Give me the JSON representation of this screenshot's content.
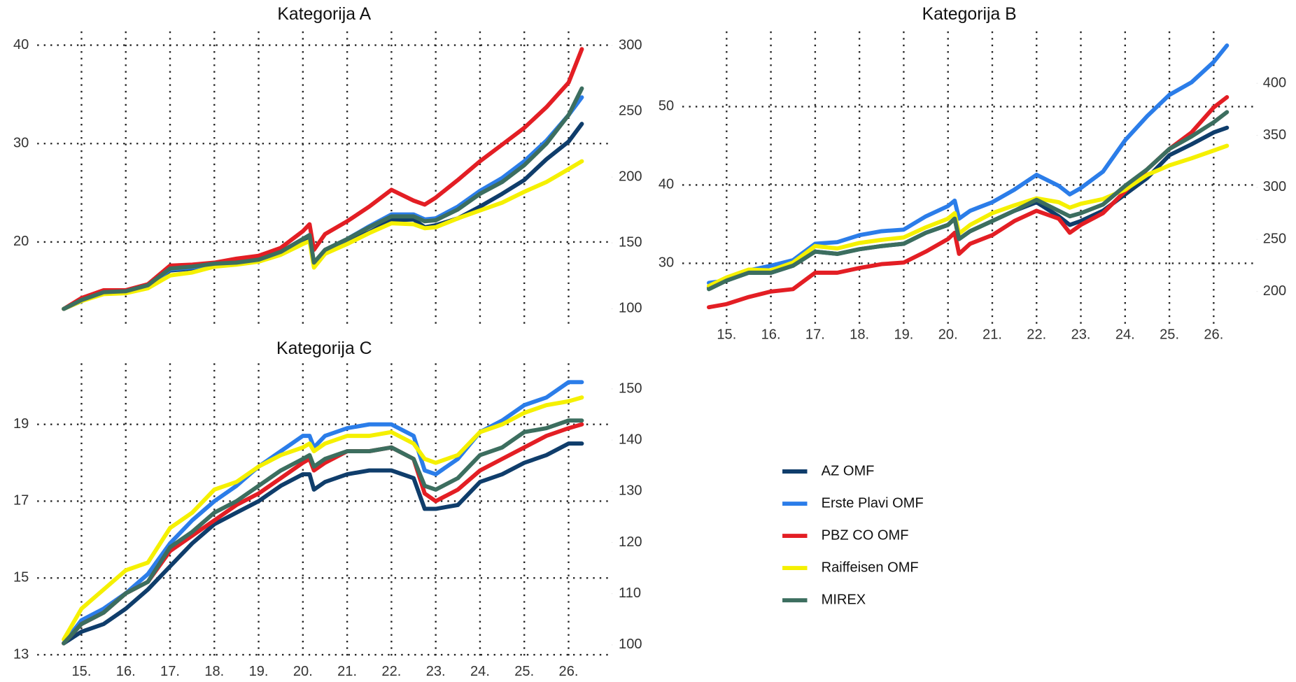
{
  "chart_data": [
    {
      "type": "line",
      "title": "Kategorija A",
      "x": [
        14.6,
        15,
        15.5,
        16,
        16.5,
        17,
        17.5,
        18,
        18.5,
        19,
        19.5,
        20,
        20.15,
        20.25,
        20.5,
        21,
        21.5,
        22,
        22.5,
        22.75,
        23,
        23.5,
        24,
        24.5,
        25,
        25.5,
        26,
        26.3
      ],
      "xlim": [
        14,
        27
      ],
      "xticks": [
        15,
        16,
        17,
        18,
        19,
        20,
        21,
        22,
        23,
        24,
        25,
        26
      ],
      "ylim": [
        11.7,
        41.4
      ],
      "yticks": [
        20,
        30,
        40
      ],
      "y2lim": [
        88.7,
        310.7
      ],
      "y2ticks": [
        100,
        150,
        200,
        250,
        300
      ],
      "series": [
        {
          "name": "AZ OMF",
          "color": "#0f3d6b",
          "values": [
            13.2,
            14.0,
            14.8,
            14.9,
            15.5,
            17.1,
            17.3,
            17.7,
            17.8,
            18.1,
            18.8,
            20.0,
            20.4,
            17.6,
            19.0,
            20.0,
            21.0,
            22.2,
            22.3,
            21.5,
            21.7,
            22.4,
            23.6,
            24.9,
            26.3,
            28.4,
            30.2,
            32.0
          ]
        },
        {
          "name": "Erste Plavi OMF",
          "color": "#2b7de9",
          "values": [
            13.2,
            14.1,
            14.9,
            14.9,
            15.5,
            17.2,
            17.4,
            17.8,
            17.9,
            18.2,
            19.0,
            20.3,
            20.7,
            17.8,
            19.2,
            20.3,
            21.6,
            22.8,
            22.8,
            22.3,
            22.4,
            23.6,
            25.2,
            26.5,
            28.2,
            30.3,
            32.9,
            34.7
          ]
        },
        {
          "name": "PBZ CO OMF",
          "color": "#e31e24",
          "values": [
            13.2,
            14.3,
            15.1,
            15.1,
            15.7,
            17.6,
            17.7,
            17.9,
            18.3,
            18.6,
            19.4,
            21.1,
            21.8,
            19.2,
            20.8,
            22.1,
            23.6,
            25.3,
            24.2,
            23.8,
            24.5,
            26.3,
            28.2,
            29.9,
            31.6,
            33.7,
            36.2,
            39.6
          ]
        },
        {
          "name": "Raiffeisen OMF",
          "color": "#f5f000",
          "values": [
            13.2,
            14.0,
            14.7,
            14.8,
            15.3,
            16.6,
            16.9,
            17.5,
            17.7,
            18.0,
            18.7,
            19.8,
            20.1,
            17.4,
            18.8,
            19.8,
            20.9,
            21.9,
            21.8,
            21.4,
            21.5,
            22.4,
            23.2,
            24.0,
            25.1,
            26.1,
            27.4,
            28.2
          ]
        },
        {
          "name": "MIREX",
          "color": "#3c6e5f",
          "values": [
            13.2,
            14.1,
            14.9,
            15.0,
            15.6,
            17.3,
            17.5,
            17.8,
            17.9,
            18.2,
            19.0,
            20.3,
            20.7,
            17.9,
            19.2,
            20.3,
            21.5,
            22.6,
            22.6,
            22.1,
            22.2,
            23.3,
            24.9,
            26.1,
            27.8,
            30.0,
            32.9,
            35.6
          ]
        }
      ]
    },
    {
      "type": "line",
      "title": "Kategorija B",
      "x": [
        14.6,
        15,
        15.5,
        16,
        16.5,
        17,
        17.5,
        18,
        18.5,
        19,
        19.5,
        20,
        20.15,
        20.25,
        20.5,
        21,
        21.5,
        22,
        22.5,
        22.75,
        23,
        23.5,
        24,
        24.5,
        25,
        25.5,
        26,
        26.3
      ],
      "xlim": [
        14,
        27
      ],
      "xticks": [
        {
          "value": 15,
          "label": "15."
        },
        {
          "value": 16,
          "label": "16."
        },
        {
          "value": 17,
          "label": "17."
        },
        {
          "value": 18,
          "label": "18."
        },
        {
          "value": 19,
          "label": "19."
        },
        {
          "value": 20,
          "label": "20."
        },
        {
          "value": 21,
          "label": "21."
        },
        {
          "value": 22,
          "label": "22."
        },
        {
          "value": 23,
          "label": "23."
        },
        {
          "value": 24,
          "label": "24."
        },
        {
          "value": 25,
          "label": "25."
        },
        {
          "value": 26,
          "label": "26."
        }
      ],
      "ylim": [
        22.3,
        59.6
      ],
      "yticks": [
        30,
        40,
        50
      ],
      "y2lim": [
        169,
        450
      ],
      "y2ticks": [
        200,
        250,
        300,
        350,
        400
      ],
      "series": [
        {
          "name": "AZ OMF",
          "color": "#0f3d6b",
          "values": [
            26.9,
            27.8,
            28.8,
            28.8,
            29.7,
            31.5,
            31.2,
            31.8,
            32.2,
            32.5,
            33.9,
            34.9,
            35.7,
            33.1,
            34.1,
            35.4,
            36.7,
            37.8,
            36.0,
            34.9,
            35.4,
            36.7,
            38.8,
            40.9,
            43.8,
            45.2,
            46.7,
            47.3
          ]
        },
        {
          "name": "Erste Plavi OMF",
          "color": "#2b7de9",
          "values": [
            27.5,
            27.8,
            29.1,
            29.7,
            30.4,
            32.5,
            32.7,
            33.6,
            34.1,
            34.3,
            36.0,
            37.3,
            38.0,
            35.7,
            36.7,
            37.8,
            39.4,
            41.3,
            39.9,
            38.8,
            39.6,
            41.7,
            45.7,
            48.8,
            51.5,
            53.1,
            55.7,
            57.8
          ]
        },
        {
          "name": "PBZ CO OMF",
          "color": "#e31e24",
          "values": [
            24.4,
            24.8,
            25.7,
            26.4,
            26.7,
            28.8,
            28.8,
            29.4,
            29.9,
            30.1,
            31.5,
            33.1,
            33.9,
            31.2,
            32.5,
            33.6,
            35.4,
            36.7,
            35.7,
            33.9,
            34.9,
            36.4,
            39.2,
            42.0,
            44.6,
            46.7,
            49.9,
            51.2
          ]
        },
        {
          "name": "Raiffeisen OMF",
          "color": "#f5f000",
          "values": [
            27.1,
            28.2,
            29.2,
            29.1,
            30.1,
            32.2,
            31.9,
            32.6,
            33.0,
            33.3,
            34.6,
            35.7,
            36.4,
            33.8,
            34.9,
            36.4,
            37.4,
            38.3,
            37.8,
            37.1,
            37.6,
            38.2,
            39.4,
            41.3,
            42.5,
            43.4,
            44.4,
            45.0
          ]
        },
        {
          "name": "MIREX",
          "color": "#3c6e5f",
          "values": [
            26.7,
            27.8,
            28.8,
            28.8,
            29.7,
            31.5,
            31.2,
            31.8,
            32.2,
            32.5,
            33.9,
            34.9,
            35.7,
            33.1,
            34.1,
            35.4,
            36.7,
            38.1,
            36.7,
            36.0,
            36.4,
            37.5,
            39.9,
            42.0,
            44.6,
            46.2,
            48.0,
            49.3
          ]
        }
      ]
    },
    {
      "type": "line",
      "title": "Kategorija C",
      "x": [
        14.6,
        15,
        15.5,
        16,
        16.5,
        17,
        17.5,
        18,
        18.5,
        19,
        19.5,
        20,
        20.15,
        20.25,
        20.5,
        21,
        21.5,
        22,
        22.5,
        22.75,
        23,
        23.5,
        24,
        24.5,
        25,
        25.5,
        26,
        26.3
      ],
      "xlim": [
        14,
        27
      ],
      "xticks": [
        {
          "value": 15,
          "label": "15."
        },
        {
          "value": 16,
          "label": "16."
        },
        {
          "value": 17,
          "label": "17."
        },
        {
          "value": 18,
          "label": "18."
        },
        {
          "value": 19,
          "label": "19."
        },
        {
          "value": 20,
          "label": "20."
        },
        {
          "value": 21,
          "label": "21."
        },
        {
          "value": 22,
          "label": "22."
        },
        {
          "value": 23,
          "label": "23."
        },
        {
          "value": 24,
          "label": "24."
        },
        {
          "value": 25,
          "label": "25."
        },
        {
          "value": 26,
          "label": "26."
        }
      ],
      "ylim": [
        12.85,
        20.59
      ],
      "yticks": [
        13,
        15,
        17,
        19
      ],
      "y2lim": [
        96.94,
        155
      ],
      "y2ticks": [
        100,
        110,
        120,
        130,
        140,
        150
      ],
      "series": [
        {
          "name": "AZ OMF",
          "color": "#0f3d6b",
          "values": [
            13.3,
            13.6,
            13.8,
            14.2,
            14.7,
            15.3,
            15.9,
            16.4,
            16.7,
            17.0,
            17.4,
            17.7,
            17.7,
            17.3,
            17.5,
            17.7,
            17.8,
            17.8,
            17.6,
            16.8,
            16.8,
            16.9,
            17.5,
            17.7,
            18.0,
            18.2,
            18.5,
            18.5
          ]
        },
        {
          "name": "Erste Plavi OMF",
          "color": "#2b7de9",
          "values": [
            13.3,
            13.9,
            14.2,
            14.6,
            15.1,
            15.9,
            16.5,
            17.0,
            17.4,
            17.9,
            18.3,
            18.7,
            18.7,
            18.4,
            18.7,
            18.9,
            19.0,
            19.0,
            18.7,
            17.8,
            17.7,
            18.1,
            18.8,
            19.1,
            19.5,
            19.7,
            20.1,
            20.1
          ]
        },
        {
          "name": "PBZ CO OMF",
          "color": "#e31e24",
          "values": [
            13.3,
            13.8,
            14.1,
            14.6,
            14.9,
            15.7,
            16.1,
            16.5,
            16.9,
            17.2,
            17.6,
            18.0,
            18.1,
            17.8,
            18.0,
            18.3,
            18.3,
            18.4,
            18.1,
            17.2,
            17.0,
            17.3,
            17.8,
            18.1,
            18.4,
            18.7,
            18.9,
            19.0
          ]
        },
        {
          "name": "Raiffeisen OMF",
          "color": "#f5f000",
          "values": [
            13.4,
            14.2,
            14.7,
            15.2,
            15.4,
            16.3,
            16.7,
            17.3,
            17.5,
            17.9,
            18.2,
            18.4,
            18.5,
            18.3,
            18.5,
            18.7,
            18.7,
            18.8,
            18.5,
            18.1,
            18.0,
            18.2,
            18.8,
            19.0,
            19.3,
            19.5,
            19.6,
            19.7
          ]
        },
        {
          "name": "MIREX",
          "color": "#3c6e5f",
          "values": [
            13.3,
            13.8,
            14.1,
            14.6,
            14.9,
            15.8,
            16.2,
            16.7,
            17.0,
            17.4,
            17.8,
            18.1,
            18.2,
            17.9,
            18.1,
            18.3,
            18.3,
            18.4,
            18.1,
            17.4,
            17.3,
            17.6,
            18.2,
            18.4,
            18.8,
            18.9,
            19.1,
            19.1
          ]
        }
      ]
    }
  ]
}
